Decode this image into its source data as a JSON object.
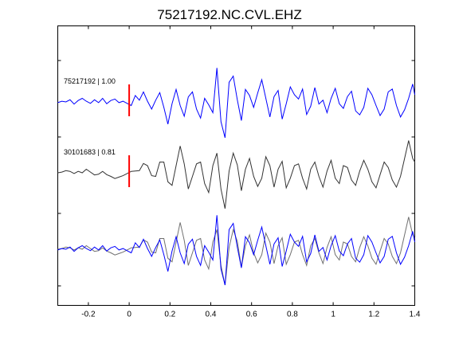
{
  "chart_data": {
    "type": "line",
    "title": "75217192.NC.CVL.EHZ",
    "xlabel": "",
    "ylabel": "",
    "xlim": [
      -0.35,
      1.4
    ],
    "x_ticks": [
      -0.2,
      0,
      0.2,
      0.4,
      0.6,
      0.8,
      1,
      1.2,
      1.4
    ],
    "x_tick_labels": [
      "-0.2",
      "0",
      "0.2",
      "0.4",
      "0.6",
      "0.8",
      "1",
      "1.2",
      "1.4"
    ],
    "grid": false,
    "legend": "none",
    "pick_time": 0,
    "colors": {
      "blue": "#0000ff",
      "gray": "#333333",
      "overlay_gray": "#707070",
      "pick": "#ff0000"
    },
    "series": [
      {
        "label": "75217192 | 1.00",
        "lane": 0,
        "color": "#0000ff",
        "x": [
          -0.35,
          -0.33,
          -0.31,
          -0.29,
          -0.27,
          -0.25,
          -0.23,
          -0.21,
          -0.19,
          -0.17,
          -0.15,
          -0.13,
          -0.11,
          -0.09,
          -0.07,
          -0.05,
          -0.03,
          -0.01,
          0.01,
          0.03,
          0.05,
          0.07,
          0.09,
          0.11,
          0.13,
          0.15,
          0.17,
          0.19,
          0.21,
          0.23,
          0.25,
          0.27,
          0.29,
          0.31,
          0.33,
          0.35,
          0.37,
          0.39,
          0.41,
          0.43,
          0.45,
          0.47,
          0.49,
          0.51,
          0.53,
          0.55,
          0.57,
          0.59,
          0.61,
          0.63,
          0.65,
          0.67,
          0.69,
          0.71,
          0.73,
          0.75,
          0.77,
          0.79,
          0.81,
          0.83,
          0.85,
          0.87,
          0.89,
          0.91,
          0.93,
          0.95,
          0.97,
          0.99,
          1.01,
          1.03,
          1.05,
          1.07,
          1.09,
          1.11,
          1.13,
          1.15,
          1.17,
          1.19,
          1.21,
          1.23,
          1.25,
          1.27,
          1.29,
          1.31,
          1.33,
          1.35,
          1.37,
          1.39,
          1.4
        ],
        "y": [
          -0.02,
          0.02,
          0.0,
          0.06,
          -0.06,
          0.04,
          0.1,
          0.02,
          -0.04,
          0.06,
          -0.02,
          0.1,
          -0.05,
          0.04,
          0.08,
          -0.02,
          0.02,
          -0.04,
          -0.1,
          0.18,
          0.05,
          0.28,
          0.02,
          -0.2,
          0.05,
          0.26,
          -0.15,
          -0.62,
          -0.05,
          0.35,
          -0.1,
          -0.4,
          0.14,
          0.28,
          -0.2,
          -0.45,
          0.1,
          -0.08,
          -0.3,
          0.95,
          -0.55,
          -1.0,
          0.55,
          0.72,
          0.06,
          -0.52,
          0.35,
          0.18,
          -0.15,
          0.25,
          0.62,
          0.1,
          -0.42,
          0.15,
          0.32,
          -0.48,
          -0.05,
          0.42,
          0.2,
          0.08,
          0.36,
          -0.35,
          -0.12,
          0.4,
          -0.06,
          0.05,
          -0.3,
          0.1,
          0.38,
          -0.05,
          -0.18,
          0.15,
          0.3,
          -0.25,
          -0.36,
          -0.15,
          0.38,
          0.2,
          -0.1,
          -0.38,
          -0.2,
          0.28,
          0.36,
          -0.1,
          -0.42,
          -0.22,
          0.1,
          0.5,
          0.2
        ]
      },
      {
        "label": "30101683 | 0.81",
        "lane": 1,
        "color": "#333333",
        "x": [
          -0.35,
          -0.33,
          -0.31,
          -0.29,
          -0.27,
          -0.25,
          -0.23,
          -0.21,
          -0.19,
          -0.17,
          -0.15,
          -0.13,
          -0.11,
          -0.09,
          -0.07,
          -0.05,
          -0.03,
          -0.01,
          0.01,
          0.03,
          0.05,
          0.07,
          0.09,
          0.11,
          0.13,
          0.15,
          0.17,
          0.19,
          0.21,
          0.23,
          0.25,
          0.27,
          0.29,
          0.31,
          0.33,
          0.35,
          0.37,
          0.39,
          0.41,
          0.43,
          0.45,
          0.47,
          0.49,
          0.51,
          0.53,
          0.55,
          0.57,
          0.59,
          0.61,
          0.63,
          0.65,
          0.67,
          0.69,
          0.71,
          0.73,
          0.75,
          0.77,
          0.79,
          0.81,
          0.83,
          0.85,
          0.87,
          0.89,
          0.91,
          0.93,
          0.95,
          0.97,
          0.99,
          1.01,
          1.03,
          1.05,
          1.07,
          1.09,
          1.11,
          1.13,
          1.15,
          1.17,
          1.19,
          1.21,
          1.23,
          1.25,
          1.27,
          1.29,
          1.31,
          1.33,
          1.35,
          1.37,
          1.39,
          1.4
        ],
        "y": [
          0.0,
          0.02,
          0.06,
          0.04,
          -0.02,
          0.04,
          0.0,
          0.1,
          0.02,
          -0.06,
          -0.04,
          0.04,
          -0.05,
          -0.1,
          -0.16,
          -0.12,
          -0.08,
          -0.02,
          0.04,
          0.05,
          0.06,
          0.26,
          0.2,
          -0.08,
          -0.1,
          0.3,
          0.3,
          -0.25,
          -0.35,
          0.2,
          0.75,
          0.25,
          -0.45,
          -0.1,
          0.25,
          0.3,
          -0.3,
          -0.55,
          0.2,
          0.55,
          -0.45,
          -1.0,
          0.05,
          0.55,
          0.22,
          -0.5,
          0.1,
          0.4,
          -0.1,
          -0.38,
          -0.15,
          0.45,
          0.2,
          -0.4,
          0.1,
          0.32,
          -0.42,
          -0.15,
          0.2,
          0.25,
          -0.15,
          -0.45,
          0.1,
          0.3,
          -0.1,
          -0.4,
          0.05,
          0.35,
          -0.15,
          -0.3,
          0.2,
          0.15,
          -0.2,
          -0.35,
          0.05,
          0.35,
          0.1,
          -0.25,
          -0.42,
          -0.05,
          0.3,
          0.15,
          -0.2,
          -0.4,
          -0.1,
          0.4,
          0.9,
          0.4,
          0.3
        ]
      }
    ],
    "overlay_lane": 2
  }
}
